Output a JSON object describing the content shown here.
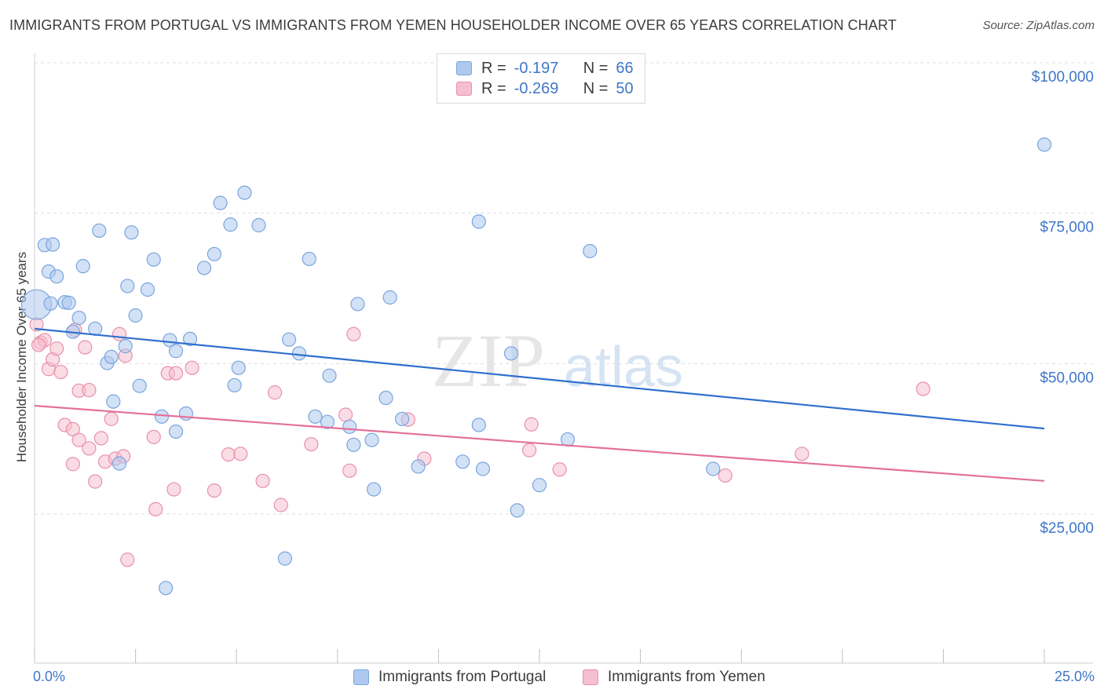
{
  "title": "IMMIGRANTS FROM PORTUGAL VS IMMIGRANTS FROM YEMEN HOUSEHOLDER INCOME OVER 65 YEARS CORRELATION CHART",
  "source": "Source: ZipAtlas.com",
  "watermark": {
    "zip": "ZIP",
    "atlas": "atlas"
  },
  "legend": {
    "r_label": "R =",
    "n_label": "N =",
    "rows": [
      {
        "r": "-0.197",
        "n": "66"
      },
      {
        "r": "-0.269",
        "n": "50"
      }
    ]
  },
  "colors": {
    "portugal_fill": "#adc9ef",
    "portugal_stroke": "#7aa5dd",
    "portugal_line": "#2f6fce",
    "yemen_fill": "#f5bfd0",
    "yemen_stroke": "#e990ac",
    "yemen_line": "#e4709a",
    "axis_text": "#3f76c9",
    "grid": "#dedede"
  },
  "chart_data": {
    "type": "scatter",
    "title": "IMMIGRANTS FROM PORTUGAL VS IMMIGRANTS FROM YEMEN HOUSEHOLDER INCOME OVER 65 YEARS CORRELATION CHART",
    "xlabel": "",
    "ylabel": "Householder Income Over 65 years",
    "x_tick_labels": [
      "0.0%",
      "25.0%"
    ],
    "y_tick_labels": [
      "$100,000",
      "$75,000",
      "$50,000",
      "$25,000"
    ],
    "y_ticks": [
      100000,
      75000,
      50000,
      25000
    ],
    "xlim": [
      0,
      25
    ],
    "ylim": [
      2500,
      102500
    ],
    "grid": true,
    "legend_position": "top-center",
    "series": [
      {
        "name": "Immigrants from Portugal",
        "trend": {
          "x": [
            0,
            25
          ],
          "y": [
            55800,
            39200
          ]
        },
        "points": [
          [
            0.05,
            59800,
            "large"
          ],
          [
            0.25,
            69700
          ],
          [
            0.45,
            69800
          ],
          [
            0.35,
            65300
          ],
          [
            0.55,
            64500
          ],
          [
            0.75,
            60200
          ],
          [
            0.85,
            60100
          ],
          [
            1.2,
            66200
          ],
          [
            1.1,
            57600
          ],
          [
            0.95,
            55300
          ],
          [
            1.5,
            55800
          ],
          [
            1.6,
            72100
          ],
          [
            2.4,
            71800
          ],
          [
            1.8,
            50100
          ],
          [
            1.9,
            51100
          ],
          [
            2.3,
            62900
          ],
          [
            2.5,
            58000
          ],
          [
            2.8,
            62300
          ],
          [
            2.95,
            67300
          ],
          [
            2.25,
            52900
          ],
          [
            1.95,
            43700
          ],
          [
            2.6,
            46300
          ],
          [
            3.15,
            41200
          ],
          [
            3.35,
            53900
          ],
          [
            3.5,
            52100
          ],
          [
            3.85,
            54100
          ],
          [
            3.75,
            41700
          ],
          [
            3.5,
            38700
          ],
          [
            4.2,
            65900
          ],
          [
            4.45,
            68200
          ],
          [
            4.6,
            76700
          ],
          [
            4.85,
            73100
          ],
          [
            4.95,
            46400
          ],
          [
            5.05,
            49300
          ],
          [
            5.2,
            78400
          ],
          [
            5.55,
            73000
          ],
          [
            2.1,
            33400
          ],
          [
            3.25,
            12700
          ],
          [
            6.2,
            17600
          ],
          [
            6.3,
            54000
          ],
          [
            6.55,
            51700
          ],
          [
            6.8,
            67400
          ],
          [
            6.95,
            41200
          ],
          [
            7.3,
            48000
          ],
          [
            7.25,
            40300
          ],
          [
            7.8,
            39500
          ],
          [
            7.9,
            36500
          ],
          [
            8.0,
            59900
          ],
          [
            8.35,
            37300
          ],
          [
            8.7,
            44300
          ],
          [
            8.8,
            61000
          ],
          [
            9.1,
            40800
          ],
          [
            8.4,
            29100
          ],
          [
            9.5,
            32900
          ],
          [
            10.6,
            33700
          ],
          [
            11.0,
            39800
          ],
          [
            11.1,
            32500
          ],
          [
            11.8,
            51700
          ],
          [
            11.95,
            25600
          ],
          [
            12.5,
            29800
          ],
          [
            13.2,
            37400
          ],
          [
            13.75,
            68700
          ],
          [
            11.0,
            73600
          ],
          [
            16.8,
            32500
          ],
          [
            25.0,
            86400
          ],
          [
            0.4,
            60000
          ]
        ]
      },
      {
        "name": "Immigrants from Yemen",
        "trend": {
          "x": [
            0,
            25
          ],
          "y": [
            43000,
            30500
          ]
        },
        "points": [
          [
            0.05,
            56500
          ],
          [
            0.15,
            53500
          ],
          [
            0.25,
            53900
          ],
          [
            0.35,
            49100
          ],
          [
            0.45,
            50700
          ],
          [
            0.55,
            52500
          ],
          [
            0.65,
            48600
          ],
          [
            0.75,
            39800
          ],
          [
            0.95,
            39100
          ],
          [
            0.95,
            33300
          ],
          [
            1.0,
            55600
          ],
          [
            1.1,
            45500
          ],
          [
            1.1,
            37300
          ],
          [
            1.25,
            52700
          ],
          [
            1.35,
            45600
          ],
          [
            1.35,
            35900
          ],
          [
            1.5,
            30400
          ],
          [
            1.65,
            37600
          ],
          [
            1.75,
            33700
          ],
          [
            1.9,
            40800
          ],
          [
            2.0,
            34200
          ],
          [
            2.1,
            54900
          ],
          [
            2.2,
            34600
          ],
          [
            2.25,
            51300
          ],
          [
            2.3,
            17400
          ],
          [
            2.95,
            37800
          ],
          [
            3.0,
            25800
          ],
          [
            3.3,
            48400
          ],
          [
            3.5,
            48400
          ],
          [
            3.45,
            29100
          ],
          [
            3.9,
            49300
          ],
          [
            4.45,
            28900
          ],
          [
            4.8,
            34900
          ],
          [
            5.1,
            35000
          ],
          [
            5.65,
            30500
          ],
          [
            5.95,
            45200
          ],
          [
            6.1,
            26500
          ],
          [
            6.85,
            36600
          ],
          [
            7.7,
            41500
          ],
          [
            7.8,
            32200
          ],
          [
            7.9,
            54900
          ],
          [
            9.25,
            40700
          ],
          [
            9.65,
            34200
          ],
          [
            12.25,
            35600
          ],
          [
            12.3,
            39900
          ],
          [
            13.0,
            32400
          ],
          [
            17.1,
            31400
          ],
          [
            19.0,
            35000
          ],
          [
            22.0,
            45800
          ],
          [
            0.1,
            53100
          ]
        ]
      }
    ]
  },
  "bottom_legend": [
    "Immigrants from Portugal",
    "Immigrants from Yemen"
  ]
}
